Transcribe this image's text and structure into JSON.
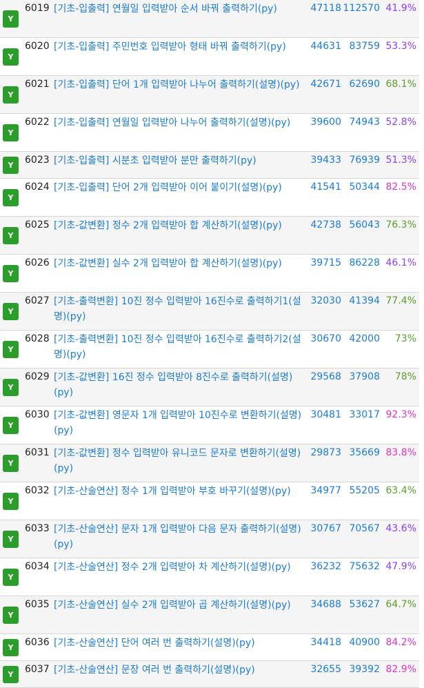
{
  "status_badge": "Y",
  "rows": [
    {
      "id": "6019",
      "title": "[기초-입출력] 연월일 입력받아 순서 바꿔 출력하기(py)",
      "solved": "47118",
      "submissions": "112570",
      "rate": "41.9%",
      "rate_color": "#8a3ffc"
    },
    {
      "id": "6020",
      "title": "[기초-입출력] 주민번호 입력받아 형태 바꿔 출력하기(py)",
      "solved": "44631",
      "submissions": "83759",
      "rate": "53.3%",
      "rate_color": "#8a3ffc"
    },
    {
      "id": "6021",
      "title": "[기초-입출력] 단어 1개 입력받아 나누어 출력하기(설명)(py)",
      "solved": "42671",
      "submissions": "62690",
      "rate": "68.1%",
      "rate_color": "#5aa02c"
    },
    {
      "id": "6022",
      "title": "[기초-입출력] 연월일 입력받아 나누어 출력하기(설명)(py)",
      "solved": "39600",
      "submissions": "74943",
      "rate": "52.8%",
      "rate_color": "#8a3ffc"
    },
    {
      "id": "6023",
      "title": "[기초-입출력] 시분초 입력받아 분만 출력하기(py)",
      "solved": "39433",
      "submissions": "76939",
      "rate": "51.3%",
      "rate_color": "#8a3ffc"
    },
    {
      "id": "6024",
      "title": "[기초-입출력] 단어 2개 입력받아 이어 붙이기(설명)(py)",
      "solved": "41541",
      "submissions": "50344",
      "rate": "82.5%",
      "rate_color": "#e234c8"
    },
    {
      "id": "6025",
      "title": "[기초-값변환] 정수 2개 입력받아 합 계산하기(설명)(py)",
      "solved": "42738",
      "submissions": "56043",
      "rate": "76.3%",
      "rate_color": "#5aa02c"
    },
    {
      "id": "6026",
      "title": "[기초-값변환] 실수 2개 입력받아 합 계산하기(설명)(py)",
      "solved": "39715",
      "submissions": "86228",
      "rate": "46.1%",
      "rate_color": "#8a3ffc"
    },
    {
      "id": "6027",
      "title": "[기초-출력변환] 10진 정수 입력받아 16진수로 출력하기1(설명)(py)",
      "solved": "32030",
      "submissions": "41394",
      "rate": "77.4%",
      "rate_color": "#5aa02c"
    },
    {
      "id": "6028",
      "title": "[기초-출력변환] 10진 정수 입력받아 16진수로 출력하기2(설명)(py)",
      "solved": "30670",
      "submissions": "42000",
      "rate": "73%",
      "rate_color": "#5aa02c"
    },
    {
      "id": "6029",
      "title": "[기초-값변환] 16진 정수 입력받아 8진수로 출력하기(설명)(py)",
      "solved": "29568",
      "submissions": "37908",
      "rate": "78%",
      "rate_color": "#5aa02c"
    },
    {
      "id": "6030",
      "title": "[기초-값변환] 영문자 1개 입력받아 10진수로 변환하기(설명)(py)",
      "solved": "30481",
      "submissions": "33017",
      "rate": "92.3%",
      "rate_color": "#e234c8"
    },
    {
      "id": "6031",
      "title": "[기초-값변환] 정수 입력받아 유니코드 문자로 변환하기(설명)(py)",
      "solved": "29873",
      "submissions": "35669",
      "rate": "83.8%",
      "rate_color": "#e234c8"
    },
    {
      "id": "6032",
      "title": "[기초-산술연산] 정수 1개 입력받아 부호 바꾸기(설명)(py)",
      "solved": "34977",
      "submissions": "55205",
      "rate": "63.4%",
      "rate_color": "#5aa02c"
    },
    {
      "id": "6033",
      "title": "[기초-산술연산] 문자 1개 입력받아 다음 문자 출력하기(설명)(py)",
      "solved": "30767",
      "submissions": "70567",
      "rate": "43.6%",
      "rate_color": "#8a3ffc"
    },
    {
      "id": "6034",
      "title": "[기초-산술연산] 정수 2개 입력받아 차 계산하기(설명)(py)",
      "solved": "36232",
      "submissions": "75632",
      "rate": "47.9%",
      "rate_color": "#8a3ffc"
    },
    {
      "id": "6035",
      "title": "[기초-산술연산] 실수 2개 입력받아 곱 계산하기(설명)(py)",
      "solved": "34688",
      "submissions": "53627",
      "rate": "64.7%",
      "rate_color": "#5aa02c"
    },
    {
      "id": "6036",
      "title": "[기초-산술연산] 단어 여러 번 출력하기(설명)(py)",
      "solved": "34418",
      "submissions": "40900",
      "rate": "84.2%",
      "rate_color": "#e234c8"
    },
    {
      "id": "6037",
      "title": "[기초-산술연산] 문장 여러 번 출력하기(설명)(py)",
      "solved": "32655",
      "submissions": "39392",
      "rate": "82.9%",
      "rate_color": "#e234c8"
    }
  ]
}
